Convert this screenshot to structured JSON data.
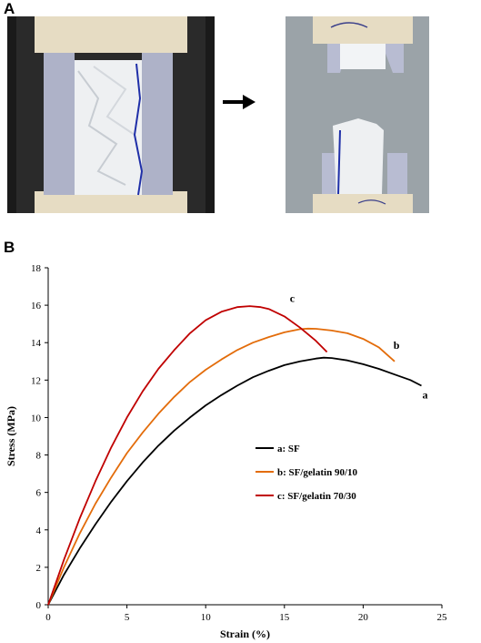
{
  "panels": {
    "a": "A",
    "b": "B"
  },
  "photos": {
    "before": "tensile specimen mounted in grips, intact",
    "after": "tensile specimen fractured into two pieces",
    "arrow_icon": "right-arrow"
  },
  "chart_data": {
    "type": "line",
    "xlabel": "Strain (%)",
    "ylabel": "Stress (MPa)",
    "xlim": [
      0,
      25
    ],
    "ylim": [
      0,
      18
    ],
    "xticks": [
      0,
      5,
      10,
      15,
      20,
      25
    ],
    "yticks": [
      0,
      2,
      4,
      6,
      8,
      10,
      12,
      14,
      16,
      18
    ],
    "grid": false,
    "legend_position": "center-right",
    "series": [
      {
        "name": "a: SF",
        "label": "a",
        "color": "#000000",
        "x": [
          0,
          1,
          2,
          3,
          4,
          5,
          6,
          7,
          8,
          9,
          10,
          11,
          12,
          13,
          14,
          15,
          16,
          17,
          17.5,
          18,
          19,
          20,
          21,
          22,
          23,
          23.7
        ],
        "y": [
          0,
          1.6,
          3.0,
          4.3,
          5.5,
          6.6,
          7.6,
          8.5,
          9.3,
          10.0,
          10.65,
          11.2,
          11.7,
          12.15,
          12.5,
          12.8,
          13.0,
          13.15,
          13.2,
          13.18,
          13.05,
          12.85,
          12.6,
          12.3,
          12.0,
          11.7
        ]
      },
      {
        "name": "b: SF/gelatin 90/10",
        "label": "b",
        "color": "#e36c0a",
        "x": [
          0,
          1,
          2,
          3,
          4,
          5,
          6,
          7,
          8,
          9,
          10,
          11,
          12,
          13,
          14,
          15,
          16,
          16.5,
          17,
          18,
          19,
          20,
          21,
          22
        ],
        "y": [
          0,
          2.0,
          3.8,
          5.4,
          6.8,
          8.1,
          9.2,
          10.2,
          11.1,
          11.9,
          12.55,
          13.1,
          13.6,
          14.0,
          14.3,
          14.55,
          14.72,
          14.75,
          14.74,
          14.65,
          14.5,
          14.2,
          13.75,
          13.0
        ]
      },
      {
        "name": "c: SF/gelatin 70/30",
        "label": "c",
        "color": "#c00000",
        "x": [
          0,
          1,
          2,
          3,
          4,
          5,
          6,
          7,
          8,
          9,
          10,
          11,
          12,
          12.8,
          13.5,
          14,
          15,
          16,
          17,
          17.7
        ],
        "y": [
          0,
          2.4,
          4.6,
          6.6,
          8.4,
          10.0,
          11.4,
          12.6,
          13.6,
          14.5,
          15.2,
          15.65,
          15.9,
          15.95,
          15.9,
          15.8,
          15.4,
          14.8,
          14.1,
          13.5
        ]
      }
    ]
  }
}
